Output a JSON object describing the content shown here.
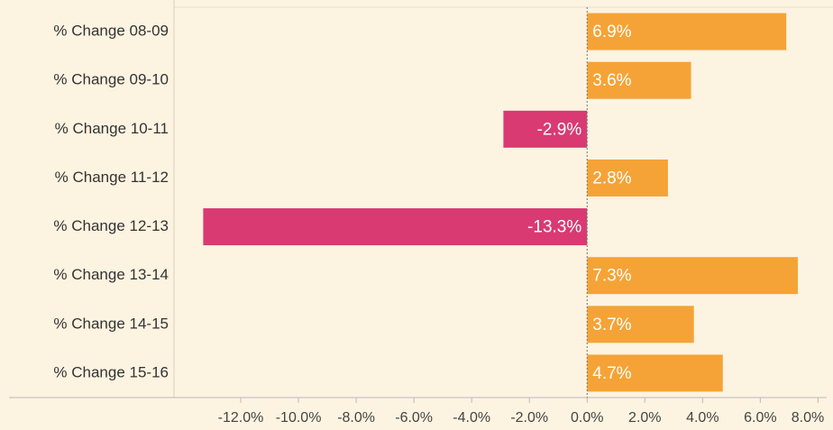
{
  "chart_data": {
    "type": "hbar",
    "categories": [
      "% Change 08-09",
      "% Change 09-10",
      "% Change 10-11",
      "% Change 11-12",
      "% Change 12-13",
      "% Change 13-14",
      "% Change 14-15",
      "% Change 15-16"
    ],
    "values": [
      6.9,
      3.6,
      -2.9,
      2.8,
      -13.3,
      7.3,
      3.7,
      4.7
    ],
    "value_labels": [
      "6.9%",
      "3.6%",
      "-2.9%",
      "2.8%",
      "-13.3%",
      "7.3%",
      "3.7%",
      "4.7%"
    ],
    "colors": [
      "#f5a336",
      "#f5a336",
      "#d93a72",
      "#f5a336",
      "#d93a72",
      "#f5a336",
      "#f5a336",
      "#f5a336"
    ],
    "xlim": [
      -14,
      8.3
    ],
    "xticks": [
      {
        "value": -12,
        "label": "-12.0%"
      },
      {
        "value": -10,
        "label": "-10.0%"
      },
      {
        "value": -8,
        "label": "-8.0%"
      },
      {
        "value": -6,
        "label": "-6.0%"
      },
      {
        "value": -4,
        "label": "-4.0%"
      },
      {
        "value": -2,
        "label": "-2.0%"
      },
      {
        "value": 0,
        "label": "0.0%"
      },
      {
        "value": 2,
        "label": "2.0%"
      },
      {
        "value": 4,
        "label": "4.0%"
      },
      {
        "value": 6,
        "label": "6.0%"
      },
      {
        "value": 8,
        "label": "8.0%"
      }
    ]
  }
}
